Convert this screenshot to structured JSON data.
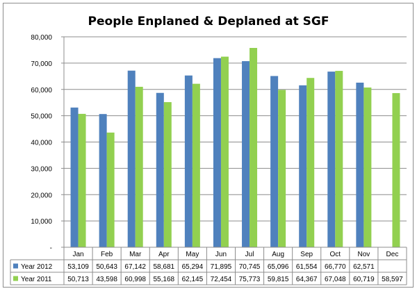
{
  "chart_data": {
    "type": "bar",
    "title": "People Enplaned & Deplaned at SGF",
    "categories": [
      "Jan",
      "Feb",
      "Mar",
      "Apr",
      "May",
      "Jun",
      "Jul",
      "Aug",
      "Sep",
      "Oct",
      "Nov",
      "Dec"
    ],
    "series": [
      {
        "name": "Year 2012",
        "color": "#4f81bd",
        "values": [
          53109,
          50643,
          67142,
          58681,
          65294,
          71895,
          70745,
          65096,
          61554,
          66770,
          62571,
          null
        ],
        "labels": [
          "53,109",
          "50,643",
          "67,142",
          "58,681",
          "65,294",
          "71,895",
          "70,745",
          "65,096",
          "61,554",
          "66,770",
          "62,571",
          ""
        ]
      },
      {
        "name": "Year 2011",
        "color": "#92d050",
        "values": [
          50713,
          43598,
          60998,
          55168,
          62145,
          72454,
          75773,
          59815,
          64367,
          67048,
          60719,
          58597
        ],
        "labels": [
          "50,713",
          "43,598",
          "60,998",
          "55,168",
          "62,145",
          "72,454",
          "75,773",
          "59,815",
          "64,367",
          "67,048",
          "60,719",
          "58,597"
        ]
      }
    ],
    "ylim": [
      0,
      80000
    ],
    "yticks": [
      0,
      10000,
      20000,
      30000,
      40000,
      50000,
      60000,
      70000,
      80000
    ],
    "ytick_labels": [
      "-",
      "10,000",
      "20,000",
      "30,000",
      "40,000",
      "50,000",
      "60,000",
      "70,000",
      "80,000"
    ],
    "grid": "horizontal",
    "legend": "data-table"
  }
}
